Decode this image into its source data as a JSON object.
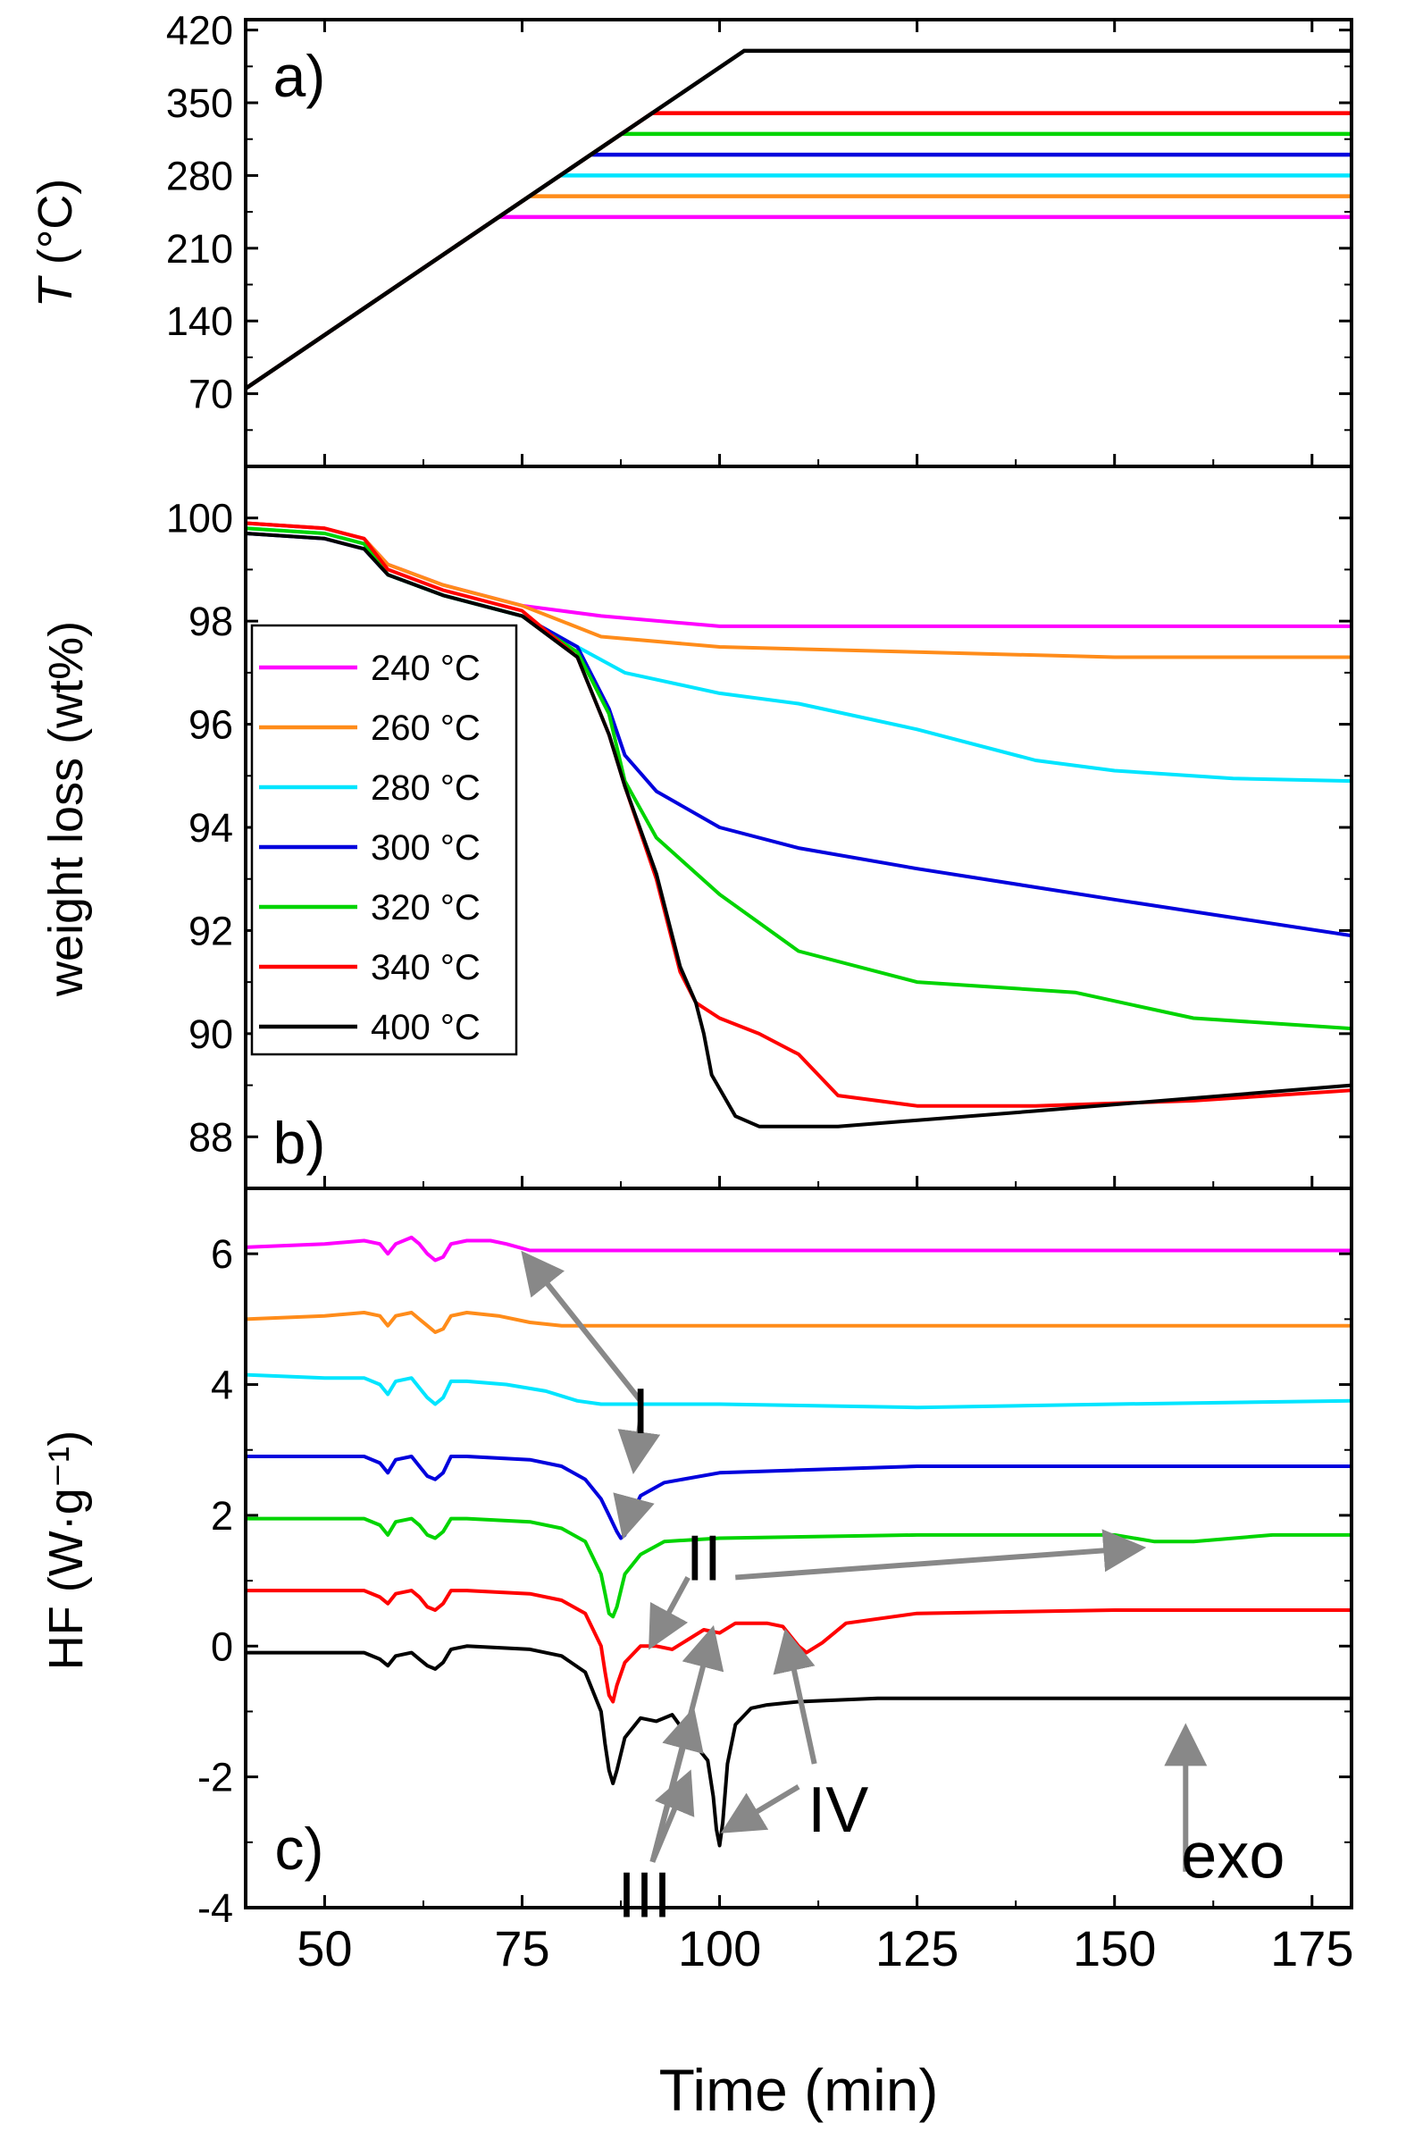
{
  "chart_data": [
    {
      "panel": "a",
      "type": "line",
      "panel_label": "a)",
      "ylabel_italic": "T",
      "ylabel_rest": " (°C)",
      "xlim": [
        40,
        180
      ],
      "ylim": [
        0,
        430
      ],
      "yticks": [
        70,
        140,
        210,
        280,
        350,
        420
      ],
      "ramp": {
        "t0": 40,
        "T0": 75,
        "rate_per_min": 5.15
      },
      "series": [
        {
          "name": "240 °C",
          "color": "#ff00ff",
          "hold": 240
        },
        {
          "name": "260 °C",
          "color": "#ff8c1a",
          "hold": 260
        },
        {
          "name": "280 °C",
          "color": "#00e5ff",
          "hold": 280
        },
        {
          "name": "300 °C",
          "color": "#0000dd",
          "hold": 300
        },
        {
          "name": "320 °C",
          "color": "#00d400",
          "hold": 320
        },
        {
          "name": "340 °C",
          "color": "#ff0000",
          "hold": 340
        },
        {
          "name": "400 °C",
          "color": "#000000",
          "hold": 400
        }
      ]
    },
    {
      "panel": "b",
      "type": "line",
      "panel_label": "b)",
      "ylabel": "weight loss (wt%)",
      "xlim": [
        40,
        180
      ],
      "ylim": [
        87,
        101
      ],
      "yticks": [
        88,
        90,
        92,
        94,
        96,
        98,
        100
      ],
      "legend_position": "left-middle",
      "series": [
        {
          "name": "240 °C",
          "color": "#ff00ff",
          "x": [
            40,
            50,
            55,
            58,
            65,
            75,
            85,
            100,
            125,
            150,
            180
          ],
          "y": [
            99.9,
            99.8,
            99.6,
            99.1,
            98.7,
            98.3,
            98.1,
            97.9,
            97.9,
            97.9,
            97.9
          ]
        },
        {
          "name": "260 °C",
          "color": "#ff8c1a",
          "x": [
            40,
            50,
            55,
            58,
            65,
            75,
            80,
            85,
            100,
            125,
            150,
            180
          ],
          "y": [
            99.9,
            99.8,
            99.6,
            99.1,
            98.7,
            98.3,
            98.0,
            97.7,
            97.5,
            97.4,
            97.3,
            97.3
          ]
        },
        {
          "name": "280 °C",
          "color": "#00e5ff",
          "x": [
            40,
            50,
            55,
            58,
            65,
            75,
            82,
            88,
            100,
            110,
            125,
            140,
            150,
            165,
            180
          ],
          "y": [
            99.8,
            99.7,
            99.5,
            98.9,
            98.5,
            98.1,
            97.5,
            97.0,
            96.6,
            96.4,
            95.9,
            95.3,
            95.1,
            94.95,
            94.9
          ]
        },
        {
          "name": "300 °C",
          "color": "#0000dd",
          "x": [
            40,
            50,
            55,
            58,
            65,
            75,
            82,
            86,
            88,
            92,
            100,
            110,
            125,
            150,
            180
          ],
          "y": [
            99.7,
            99.6,
            99.4,
            98.9,
            98.5,
            98.1,
            97.5,
            96.3,
            95.4,
            94.7,
            94.0,
            93.6,
            93.2,
            92.6,
            91.9
          ]
        },
        {
          "name": "320 °C",
          "color": "#00d400",
          "x": [
            40,
            50,
            55,
            58,
            65,
            75,
            82,
            86,
            88,
            92,
            100,
            110,
            125,
            145,
            160,
            180
          ],
          "y": [
            99.8,
            99.7,
            99.5,
            98.9,
            98.5,
            98.1,
            97.4,
            96.2,
            94.9,
            93.8,
            92.7,
            91.6,
            91.0,
            90.8,
            90.3,
            90.1
          ]
        },
        {
          "name": "340 °C",
          "color": "#ff0000",
          "x": [
            40,
            50,
            55,
            58,
            65,
            75,
            82,
            86,
            88,
            92,
            95,
            97,
            100,
            105,
            110,
            115,
            125,
            140,
            160,
            180
          ],
          "y": [
            99.9,
            99.8,
            99.6,
            99.0,
            98.6,
            98.2,
            97.3,
            95.8,
            94.8,
            93.0,
            91.2,
            90.6,
            90.3,
            90.0,
            89.6,
            88.8,
            88.6,
            88.6,
            88.7,
            88.9
          ]
        },
        {
          "name": "400 °C",
          "color": "#000000",
          "x": [
            40,
            50,
            55,
            58,
            65,
            75,
            82,
            86,
            88,
            92,
            95,
            97,
            98,
            99,
            102,
            105,
            110,
            115,
            140,
            160,
            180
          ],
          "y": [
            99.7,
            99.6,
            99.4,
            98.9,
            98.5,
            98.1,
            97.3,
            95.8,
            94.8,
            93.1,
            91.3,
            90.6,
            90.0,
            89.2,
            88.4,
            88.2,
            88.2,
            88.2,
            88.5,
            88.75,
            89.0
          ]
        }
      ]
    },
    {
      "panel": "c",
      "type": "line",
      "panel_label": "c)",
      "ylabel": "HF (W·g⁻¹)",
      "xlabel": "Time (min)",
      "xlim": [
        40,
        180
      ],
      "ylim": [
        -4,
        7
      ],
      "yticks": [
        -4,
        -2,
        0,
        2,
        4,
        6
      ],
      "xticks": [
        50,
        75,
        100,
        125,
        150,
        175
      ],
      "series": [
        {
          "name": "240 °C",
          "color": "#ff00ff",
          "x": [
            40,
            50,
            55,
            57,
            58,
            59,
            61,
            62,
            63,
            64,
            65,
            66,
            68,
            71,
            73,
            76,
            80,
            100,
            140,
            180
          ],
          "y": [
            6.1,
            6.15,
            6.2,
            6.15,
            6.0,
            6.15,
            6.25,
            6.15,
            6.0,
            5.9,
            5.95,
            6.15,
            6.2,
            6.2,
            6.15,
            6.05,
            6.05,
            6.05,
            6.05,
            6.05
          ]
        },
        {
          "name": "260 °C",
          "color": "#ff8c1a",
          "x": [
            40,
            50,
            55,
            57,
            58,
            59,
            61,
            62,
            63,
            64,
            65,
            66,
            68,
            72,
            76,
            80,
            85,
            100,
            140,
            180
          ],
          "y": [
            5.0,
            5.05,
            5.1,
            5.05,
            4.9,
            5.05,
            5.1,
            5.0,
            4.9,
            4.8,
            4.85,
            5.05,
            5.1,
            5.05,
            4.95,
            4.9,
            4.9,
            4.9,
            4.9,
            4.9
          ]
        },
        {
          "name": "280 °C",
          "color": "#00e5ff",
          "x": [
            40,
            50,
            55,
            57,
            58,
            59,
            61,
            62,
            63,
            64,
            65,
            66,
            68,
            73,
            78,
            82,
            85,
            90,
            100,
            125,
            150,
            180
          ],
          "y": [
            4.15,
            4.1,
            4.1,
            4.0,
            3.85,
            4.05,
            4.1,
            3.95,
            3.8,
            3.7,
            3.8,
            4.05,
            4.05,
            4.0,
            3.9,
            3.75,
            3.7,
            3.7,
            3.7,
            3.65,
            3.7,
            3.75
          ]
        },
        {
          "name": "300 °C",
          "color": "#0000dd",
          "x": [
            40,
            50,
            55,
            57,
            58,
            59,
            61,
            62,
            63,
            64,
            65,
            66,
            68,
            76,
            80,
            83,
            85,
            86,
            87,
            87.5,
            88,
            89,
            90,
            93,
            100,
            125,
            150,
            180
          ],
          "y": [
            2.9,
            2.9,
            2.9,
            2.8,
            2.65,
            2.85,
            2.9,
            2.75,
            2.6,
            2.55,
            2.65,
            2.9,
            2.9,
            2.85,
            2.75,
            2.55,
            2.25,
            2.0,
            1.75,
            1.65,
            1.7,
            2.05,
            2.3,
            2.5,
            2.65,
            2.75,
            2.75,
            2.75
          ]
        },
        {
          "name": "320 °C",
          "color": "#00d400",
          "x": [
            40,
            50,
            55,
            57,
            58,
            59,
            61,
            62,
            63,
            64,
            65,
            66,
            68,
            76,
            80,
            83,
            85,
            85.5,
            86,
            86.5,
            87,
            88,
            90,
            93,
            100,
            125,
            150,
            155,
            160,
            170,
            180
          ],
          "y": [
            1.95,
            1.95,
            1.95,
            1.85,
            1.7,
            1.9,
            1.95,
            1.85,
            1.7,
            1.65,
            1.75,
            1.95,
            1.95,
            1.9,
            1.8,
            1.6,
            1.1,
            0.8,
            0.5,
            0.45,
            0.6,
            1.1,
            1.4,
            1.6,
            1.65,
            1.7,
            1.7,
            1.6,
            1.6,
            1.7,
            1.7
          ]
        },
        {
          "name": "340 °C",
          "color": "#ff0000",
          "x": [
            40,
            50,
            55,
            57,
            58,
            59,
            61,
            62,
            63,
            64,
            65,
            66,
            68,
            76,
            80,
            83,
            85,
            85.5,
            86,
            86.5,
            87,
            88,
            90,
            92,
            94,
            96,
            98,
            100,
            102,
            104,
            106,
            108,
            110,
            111,
            113,
            116,
            125,
            150,
            180
          ],
          "y": [
            0.85,
            0.85,
            0.85,
            0.75,
            0.65,
            0.8,
            0.85,
            0.75,
            0.6,
            0.55,
            0.65,
            0.85,
            0.85,
            0.8,
            0.7,
            0.5,
            0.0,
            -0.4,
            -0.75,
            -0.85,
            -0.6,
            -0.25,
            0.0,
            0.0,
            -0.05,
            0.1,
            0.25,
            0.2,
            0.35,
            0.35,
            0.35,
            0.3,
            0.0,
            -0.1,
            0.05,
            0.35,
            0.5,
            0.55,
            0.55
          ]
        },
        {
          "name": "400 °C",
          "color": "#000000",
          "x": [
            40,
            50,
            55,
            57,
            58,
            59,
            61,
            62,
            63,
            64,
            65,
            66,
            68,
            76,
            80,
            83,
            85,
            85.5,
            86,
            86.5,
            87,
            88,
            90,
            92,
            94,
            95.5,
            96.5,
            97.5,
            98.5,
            99.2,
            99.6,
            100,
            100.4,
            101,
            102,
            104,
            106,
            110,
            120,
            150,
            180
          ],
          "y": [
            -0.1,
            -0.1,
            -0.1,
            -0.2,
            -0.3,
            -0.15,
            -0.1,
            -0.2,
            -0.3,
            -0.35,
            -0.25,
            -0.05,
            0.0,
            -0.05,
            -0.15,
            -0.4,
            -1.0,
            -1.5,
            -1.9,
            -2.1,
            -1.9,
            -1.4,
            -1.1,
            -1.15,
            -1.05,
            -1.3,
            -1.55,
            -1.6,
            -1.75,
            -2.3,
            -2.8,
            -3.05,
            -2.7,
            -1.8,
            -1.2,
            -0.95,
            -0.9,
            -0.85,
            -0.8,
            -0.8,
            -0.8
          ]
        }
      ],
      "annotations": [
        {
          "label": "I",
          "text_x": 90,
          "text_y": 3.6
        },
        {
          "label": "II",
          "text_x": 98,
          "text_y": 1.35
        },
        {
          "label": "III",
          "text_x": 90.5,
          "text_y": -3.8
        },
        {
          "label": "IV",
          "text_x": 115,
          "text_y": -2.5
        },
        {
          "label": "exo",
          "text_x": 165,
          "text_y": -3.2
        }
      ],
      "arrows": [
        {
          "x1": 90,
          "y1": 3.75,
          "x2": 75.5,
          "y2": 5.95
        },
        {
          "x1": 90,
          "y1": 3.45,
          "x2": 89.2,
          "y2": 2.75
        },
        {
          "x1": 89,
          "y1": 2.2,
          "x2": 88,
          "y2": 1.75
        },
        {
          "x1": 102,
          "y1": 1.05,
          "x2": 153,
          "y2": 1.5
        },
        {
          "x1": 96,
          "y1": 1.05,
          "x2": 91.5,
          "y2": 0.05
        },
        {
          "x1": 91.5,
          "y1": -3.3,
          "x2": 99,
          "y2": 0.2
        },
        {
          "x1": 91.5,
          "y1": -3.3,
          "x2": 96.5,
          "y2": -1.05
        },
        {
          "x1": 91.5,
          "y1": -3.3,
          "x2": 96,
          "y2": -2.0
        },
        {
          "x1": 112,
          "y1": -1.8,
          "x2": 108.5,
          "y2": 0.15
        },
        {
          "x1": 110,
          "y1": -2.15,
          "x2": 101,
          "y2": -2.8
        },
        {
          "x1": 159,
          "y1": -3.45,
          "x2": 159,
          "y2": -1.3
        }
      ]
    }
  ]
}
